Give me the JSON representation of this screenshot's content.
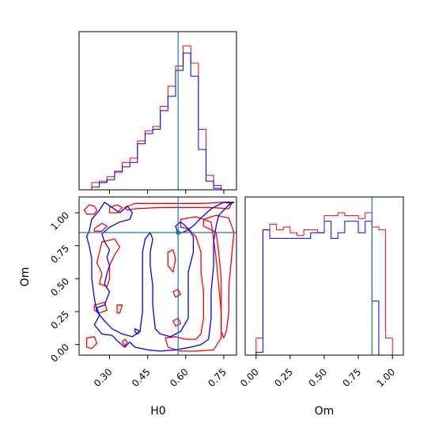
{
  "chart_data": {
    "type": "corner",
    "parameters": [
      "H0",
      "Om"
    ],
    "colors": {
      "series_a": "#ff0000",
      "series_b": "#0000ff",
      "truth": "#1f77b4"
    },
    "truth": {
      "H0": 0.57,
      "Om": 0.85
    },
    "panels": {
      "h0_hist": {
        "xlim": [
          0.18,
          0.8
        ],
        "ticks": [
          0.3,
          0.45,
          0.6,
          0.75
        ],
        "bin_edges": [
          0.23,
          0.26,
          0.29,
          0.32,
          0.35,
          0.38,
          0.41,
          0.44,
          0.47,
          0.5,
          0.53,
          0.56,
          0.59,
          0.62,
          0.65,
          0.68,
          0.71,
          0.74
        ],
        "series": [
          {
            "values": [
              0.05,
              0.06,
              0.09,
              0.12,
              0.19,
              0.22,
              0.34,
              0.41,
              0.44,
              0.58,
              0.72,
              0.86,
              1.0,
              0.88,
              0.42,
              0.1,
              0.03
            ]
          },
          {
            "values": [
              0.02,
              0.05,
              0.07,
              0.13,
              0.16,
              0.19,
              0.32,
              0.39,
              0.42,
              0.55,
              0.65,
              0.83,
              0.95,
              0.79,
              0.28,
              0.06,
              0.01
            ]
          }
        ]
      },
      "om_hist": {
        "xlim": [
          -0.08,
          1.08
        ],
        "ticks": [
          0.0,
          0.25,
          0.5,
          0.75,
          1.0
        ],
        "bin_edges": [
          0.0,
          0.05,
          0.1,
          0.15,
          0.2,
          0.25,
          0.3,
          0.35,
          0.4,
          0.45,
          0.5,
          0.55,
          0.6,
          0.65,
          0.7,
          0.75,
          0.8,
          0.85,
          0.9,
          0.95,
          1.0
        ],
        "series": [
          {
            "values": [
              0.12,
              0.88,
              0.92,
              0.88,
              0.9,
              0.86,
              0.84,
              0.88,
              0.88,
              0.86,
              0.98,
              0.98,
              1.0,
              0.98,
              0.98,
              0.96,
              1.0,
              0.9,
              0.88,
              0.12
            ]
          },
          {
            "values": [
              0.02,
              0.88,
              0.82,
              0.82,
              0.82,
              0.82,
              0.82,
              0.82,
              0.86,
              0.86,
              0.94,
              0.82,
              0.86,
              0.94,
              0.94,
              0.86,
              0.94,
              0.38,
              0.0,
              0.0
            ]
          }
        ]
      },
      "joint": {
        "xlim": [
          0.18,
          0.8
        ],
        "ylim": [
          -0.08,
          1.12
        ],
        "xticks": [
          0.3,
          0.45,
          0.6,
          0.75
        ],
        "yticks": [
          0.0,
          0.25,
          0.5,
          0.75,
          1.0
        ],
        "red_contours": [
          [
            [
              0.2,
              1.02
            ],
            [
              0.22,
              1.06
            ],
            [
              0.24,
              1.05
            ],
            [
              0.25,
              1.02
            ],
            [
              0.24,
              0.99
            ],
            [
              0.21,
              0.99
            ],
            [
              0.2,
              1.02
            ]
          ],
          [
            [
              0.3,
              1.04
            ],
            [
              0.33,
              1.06
            ],
            [
              0.35,
              1.04
            ],
            [
              0.33,
              1.0
            ],
            [
              0.3,
              1.0
            ],
            [
              0.3,
              1.04
            ]
          ],
          [
            [
              0.36,
              1.04
            ],
            [
              0.4,
              1.07
            ],
            [
              0.5,
              1.07
            ],
            [
              0.58,
              1.07
            ],
            [
              0.66,
              1.07
            ],
            [
              0.75,
              1.08
            ],
            [
              0.78,
              1.07
            ],
            [
              0.77,
              1.03
            ],
            [
              0.7,
              1.04
            ],
            [
              0.6,
              1.04
            ],
            [
              0.5,
              1.04
            ],
            [
              0.4,
              1.03
            ],
            [
              0.37,
              1.02
            ],
            [
              0.36,
              1.04
            ]
          ],
          [
            [
              0.24,
              0.88
            ],
            [
              0.27,
              0.92
            ],
            [
              0.29,
              0.9
            ],
            [
              0.27,
              0.86
            ],
            [
              0.24,
              0.86
            ],
            [
              0.24,
              0.88
            ]
          ],
          [
            [
              0.27,
              0.78
            ],
            [
              0.32,
              0.8
            ],
            [
              0.34,
              0.74
            ],
            [
              0.32,
              0.68
            ],
            [
              0.3,
              0.6
            ],
            [
              0.3,
              0.5
            ],
            [
              0.29,
              0.44
            ],
            [
              0.26,
              0.46
            ],
            [
              0.27,
              0.54
            ],
            [
              0.25,
              0.62
            ],
            [
              0.26,
              0.7
            ],
            [
              0.27,
              0.78
            ]
          ],
          [
            [
              0.24,
              0.3
            ],
            [
              0.28,
              0.32
            ],
            [
              0.29,
              0.26
            ],
            [
              0.26,
              0.24
            ],
            [
              0.24,
              0.26
            ],
            [
              0.24,
              0.3
            ]
          ],
          [
            [
              0.33,
              0.3
            ],
            [
              0.35,
              0.3
            ],
            [
              0.34,
              0.24
            ],
            [
              0.33,
              0.24
            ],
            [
              0.33,
              0.3
            ]
          ],
          [
            [
              0.21,
              0.05
            ],
            [
              0.24,
              0.06
            ],
            [
              0.25,
              0.01
            ],
            [
              0.23,
              -0.03
            ],
            [
              0.21,
              -0.02
            ],
            [
              0.21,
              0.05
            ]
          ],
          [
            [
              0.36,
              0.04
            ],
            [
              0.37,
              0.02
            ],
            [
              0.36,
              -0.01
            ],
            [
              0.35,
              0.02
            ],
            [
              0.36,
              0.04
            ]
          ],
          [
            [
              0.58,
              0.95
            ],
            [
              0.64,
              0.97
            ],
            [
              0.7,
              0.93
            ],
            [
              0.71,
              0.8
            ],
            [
              0.72,
              0.65
            ],
            [
              0.73,
              0.45
            ],
            [
              0.74,
              0.25
            ],
            [
              0.74,
              0.05
            ],
            [
              0.71,
              -0.04
            ],
            [
              0.64,
              -0.05
            ],
            [
              0.58,
              -0.05
            ],
            [
              0.53,
              -0.02
            ],
            [
              0.52,
              0.05
            ],
            [
              0.56,
              0.06
            ],
            [
              0.6,
              0.04
            ],
            [
              0.64,
              0.04
            ],
            [
              0.66,
              0.08
            ],
            [
              0.67,
              0.2
            ],
            [
              0.67,
              0.4
            ],
            [
              0.66,
              0.55
            ],
            [
              0.66,
              0.7
            ],
            [
              0.64,
              0.82
            ],
            [
              0.61,
              0.88
            ],
            [
              0.58,
              0.89
            ],
            [
              0.58,
              0.95
            ]
          ],
          [
            [
              0.67,
              0.95
            ],
            [
              0.72,
              0.98
            ],
            [
              0.77,
              0.96
            ],
            [
              0.79,
              0.85
            ],
            [
              0.78,
              0.65
            ],
            [
              0.77,
              0.45
            ],
            [
              0.77,
              0.25
            ],
            [
              0.76,
              0.1
            ],
            [
              0.75,
              0.05
            ],
            [
              0.74,
              0.1
            ],
            [
              0.74,
              0.3
            ],
            [
              0.74,
              0.5
            ],
            [
              0.73,
              0.7
            ],
            [
              0.72,
              0.85
            ],
            [
              0.67,
              0.9
            ],
            [
              0.67,
              0.95
            ]
          ],
          [
            [
              0.53,
              0.7
            ],
            [
              0.55,
              0.72
            ],
            [
              0.56,
              0.65
            ],
            [
              0.55,
              0.55
            ],
            [
              0.53,
              0.6
            ],
            [
              0.53,
              0.7
            ]
          ],
          [
            [
              0.55,
              0.4
            ],
            [
              0.57,
              0.42
            ],
            [
              0.58,
              0.38
            ],
            [
              0.56,
              0.36
            ],
            [
              0.55,
              0.4
            ]
          ],
          [
            [
              0.55,
              0.18
            ],
            [
              0.57,
              0.2
            ],
            [
              0.58,
              0.16
            ],
            [
              0.56,
              0.14
            ],
            [
              0.55,
              0.18
            ]
          ]
        ],
        "blue_contours": [
          [
            [
              0.22,
              0.86
            ],
            [
              0.23,
              0.95
            ],
            [
              0.26,
              1.02
            ],
            [
              0.28,
              1.08
            ],
            [
              0.31,
              1.04
            ],
            [
              0.34,
              1.0
            ],
            [
              0.37,
              1.05
            ],
            [
              0.39,
              1.0
            ],
            [
              0.38,
              0.95
            ],
            [
              0.34,
              0.93
            ],
            [
              0.3,
              0.89
            ],
            [
              0.27,
              0.84
            ],
            [
              0.28,
              0.78
            ],
            [
              0.3,
              0.72
            ],
            [
              0.29,
              0.66
            ],
            [
              0.3,
              0.6
            ],
            [
              0.29,
              0.54
            ],
            [
              0.28,
              0.46
            ],
            [
              0.3,
              0.4
            ],
            [
              0.28,
              0.3
            ],
            [
              0.25,
              0.28
            ],
            [
              0.26,
              0.22
            ],
            [
              0.24,
              0.15
            ],
            [
              0.27,
              0.08
            ],
            [
              0.31,
              0.07
            ],
            [
              0.33,
              0.03
            ],
            [
              0.36,
              -0.02
            ],
            [
              0.38,
              0.02
            ],
            [
              0.4,
              -0.02
            ],
            [
              0.45,
              -0.04
            ],
            [
              0.5,
              -0.05
            ],
            [
              0.56,
              -0.04
            ],
            [
              0.62,
              -0.02
            ],
            [
              0.66,
              0.0
            ],
            [
              0.69,
              0.04
            ],
            [
              0.7,
              0.2
            ],
            [
              0.7,
              0.4
            ],
            [
              0.71,
              0.6
            ],
            [
              0.71,
              0.78
            ],
            [
              0.72,
              0.9
            ],
            [
              0.73,
              0.98
            ],
            [
              0.77,
              1.06
            ],
            [
              0.79,
              1.08
            ],
            [
              0.75,
              1.08
            ],
            [
              0.7,
              1.03
            ],
            [
              0.66,
              0.96
            ],
            [
              0.63,
              0.9
            ],
            [
              0.6,
              0.86
            ],
            [
              0.57,
              0.84
            ],
            [
              0.56,
              0.9
            ],
            [
              0.58,
              0.93
            ],
            [
              0.6,
              0.9
            ],
            [
              0.63,
              0.82
            ],
            [
              0.63,
              0.7
            ],
            [
              0.61,
              0.55
            ],
            [
              0.61,
              0.4
            ],
            [
              0.61,
              0.2
            ],
            [
              0.58,
              0.1
            ],
            [
              0.54,
              0.06
            ],
            [
              0.5,
              0.08
            ],
            [
              0.48,
              0.12
            ],
            [
              0.47,
              0.3
            ],
            [
              0.47,
              0.45
            ],
            [
              0.46,
              0.6
            ],
            [
              0.46,
              0.7
            ],
            [
              0.47,
              0.8
            ],
            [
              0.46,
              0.85
            ],
            [
              0.44,
              0.8
            ],
            [
              0.43,
              0.7
            ],
            [
              0.43,
              0.55
            ],
            [
              0.43,
              0.4
            ],
            [
              0.43,
              0.25
            ],
            [
              0.42,
              0.1
            ],
            [
              0.39,
              0.06
            ],
            [
              0.35,
              0.08
            ],
            [
              0.31,
              0.12
            ],
            [
              0.28,
              0.18
            ],
            [
              0.25,
              0.25
            ],
            [
              0.24,
              0.35
            ],
            [
              0.23,
              0.5
            ],
            [
              0.23,
              0.65
            ],
            [
              0.22,
              0.75
            ],
            [
              0.21,
              0.82
            ],
            [
              0.22,
              0.86
            ]
          ],
          [
            [
              0.4,
              0.12
            ],
            [
              0.42,
              0.1
            ],
            [
              0.41,
              0.08
            ],
            [
              0.4,
              0.1
            ],
            [
              0.4,
              0.12
            ]
          ]
        ]
      }
    },
    "xlabels": {
      "h0": "H0",
      "om": "Om"
    },
    "ylabels": {
      "joint": "Om"
    }
  }
}
